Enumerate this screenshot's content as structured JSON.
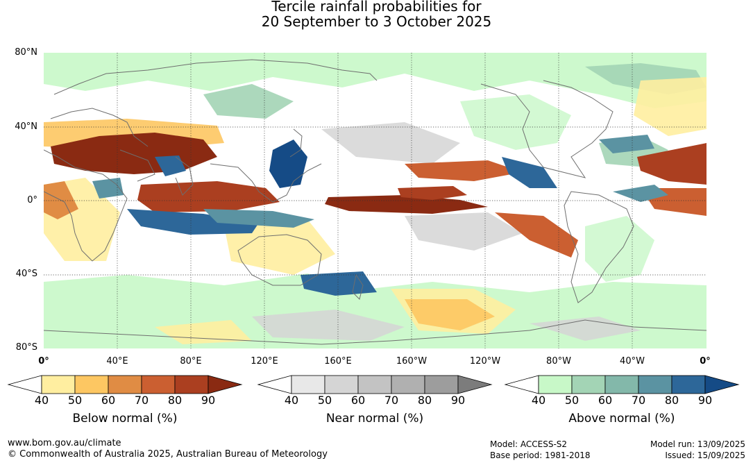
{
  "title_line1": "Tercile rainfall probabilities for",
  "title_line2": "20 September to 3 October 2025",
  "map": {
    "lat_labels": [
      "80°N",
      "40°N",
      "0°",
      "40°S",
      "80°S"
    ],
    "lon_labels": [
      "0°",
      "40°E",
      "80°E",
      "120°E",
      "160°E",
      "160°W",
      "120°W",
      "80°W",
      "40°W",
      "0°"
    ],
    "ocean_color": "#ffffff",
    "coast_color": "#6e6e6e"
  },
  "colorbars": [
    {
      "title": "Below normal (%)",
      "ticks": [
        "40",
        "50",
        "60",
        "70",
        "80",
        "90"
      ],
      "colors": [
        "#ffeea0",
        "#fdc762",
        "#e08c44",
        "#cb5f31",
        "#ab3f20",
        "#8a2a12"
      ]
    },
    {
      "title": "Near normal (%)",
      "ticks": [
        "40",
        "50",
        "60",
        "70",
        "80",
        "90"
      ],
      "colors": [
        "#e8e8e8",
        "#d5d5d5",
        "#c3c3c3",
        "#b0b0b0",
        "#9d9d9d",
        "#7c7c7c"
      ]
    },
    {
      "title": "Above normal (%)",
      "ticks": [
        "40",
        "50",
        "60",
        "70",
        "80",
        "90"
      ],
      "colors": [
        "#c8f8c8",
        "#a3d4b5",
        "#83b8aa",
        "#5b93a2",
        "#2d6799",
        "#154b86"
      ]
    }
  ],
  "footer": {
    "website": "www.bom.gov.au/climate",
    "copyright": "© Commonwealth of Australia 2025, Australian Bureau of Meteorology",
    "model": "Model: ACCESS-S2",
    "base_period": "Base period: 1981-2018",
    "model_run": "Model run: 13/09/2025",
    "issued": "Issued: 15/09/2025"
  }
}
